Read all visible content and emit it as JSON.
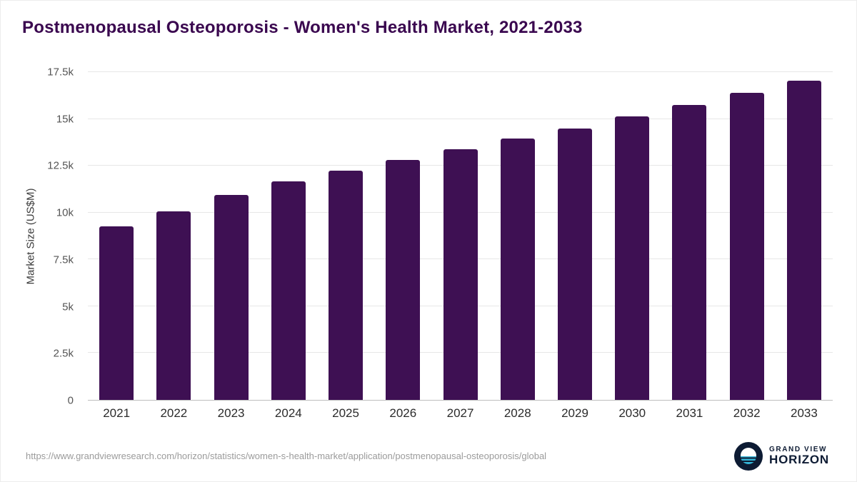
{
  "title": "Postmenopausal Osteoporosis - Women's Health Market, 2021-2033",
  "colors": {
    "title": "#3a074f",
    "bar": "#3e1053",
    "logo_navy": "#0d1b33",
    "logo_teal": "#35b6d9"
  },
  "chart_data": {
    "type": "bar",
    "title": "Postmenopausal Osteoporosis - Women's Health Market, 2021-2033",
    "categories": [
      "2021",
      "2022",
      "2023",
      "2024",
      "2025",
      "2026",
      "2027",
      "2028",
      "2029",
      "2030",
      "2031",
      "2032",
      "2033"
    ],
    "values": [
      9250,
      10050,
      10950,
      11650,
      12250,
      12800,
      13400,
      13950,
      14500,
      15150,
      15750,
      16400,
      17050
    ],
    "xlabel": "",
    "ylabel": "Market Size (US$M)",
    "ylim": [
      0,
      17500
    ],
    "yticks": [
      0,
      2500,
      5000,
      7500,
      10000,
      12500,
      15000,
      17500
    ],
    "ytick_labels": [
      "0",
      "2.5k",
      "5k",
      "7.5k",
      "10k",
      "12.5k",
      "15k",
      "17.5k"
    ],
    "grid": true,
    "legend": "none",
    "bar_color": "#3e1053"
  },
  "footer": {
    "source_url": "https://www.grandviewresearch.com/horizon/statistics/women-s-health-market/application/postmenopausal-osteoporosis/global",
    "logo_text_top": "GRAND VIEW",
    "logo_text_bottom": "HORIZON"
  }
}
